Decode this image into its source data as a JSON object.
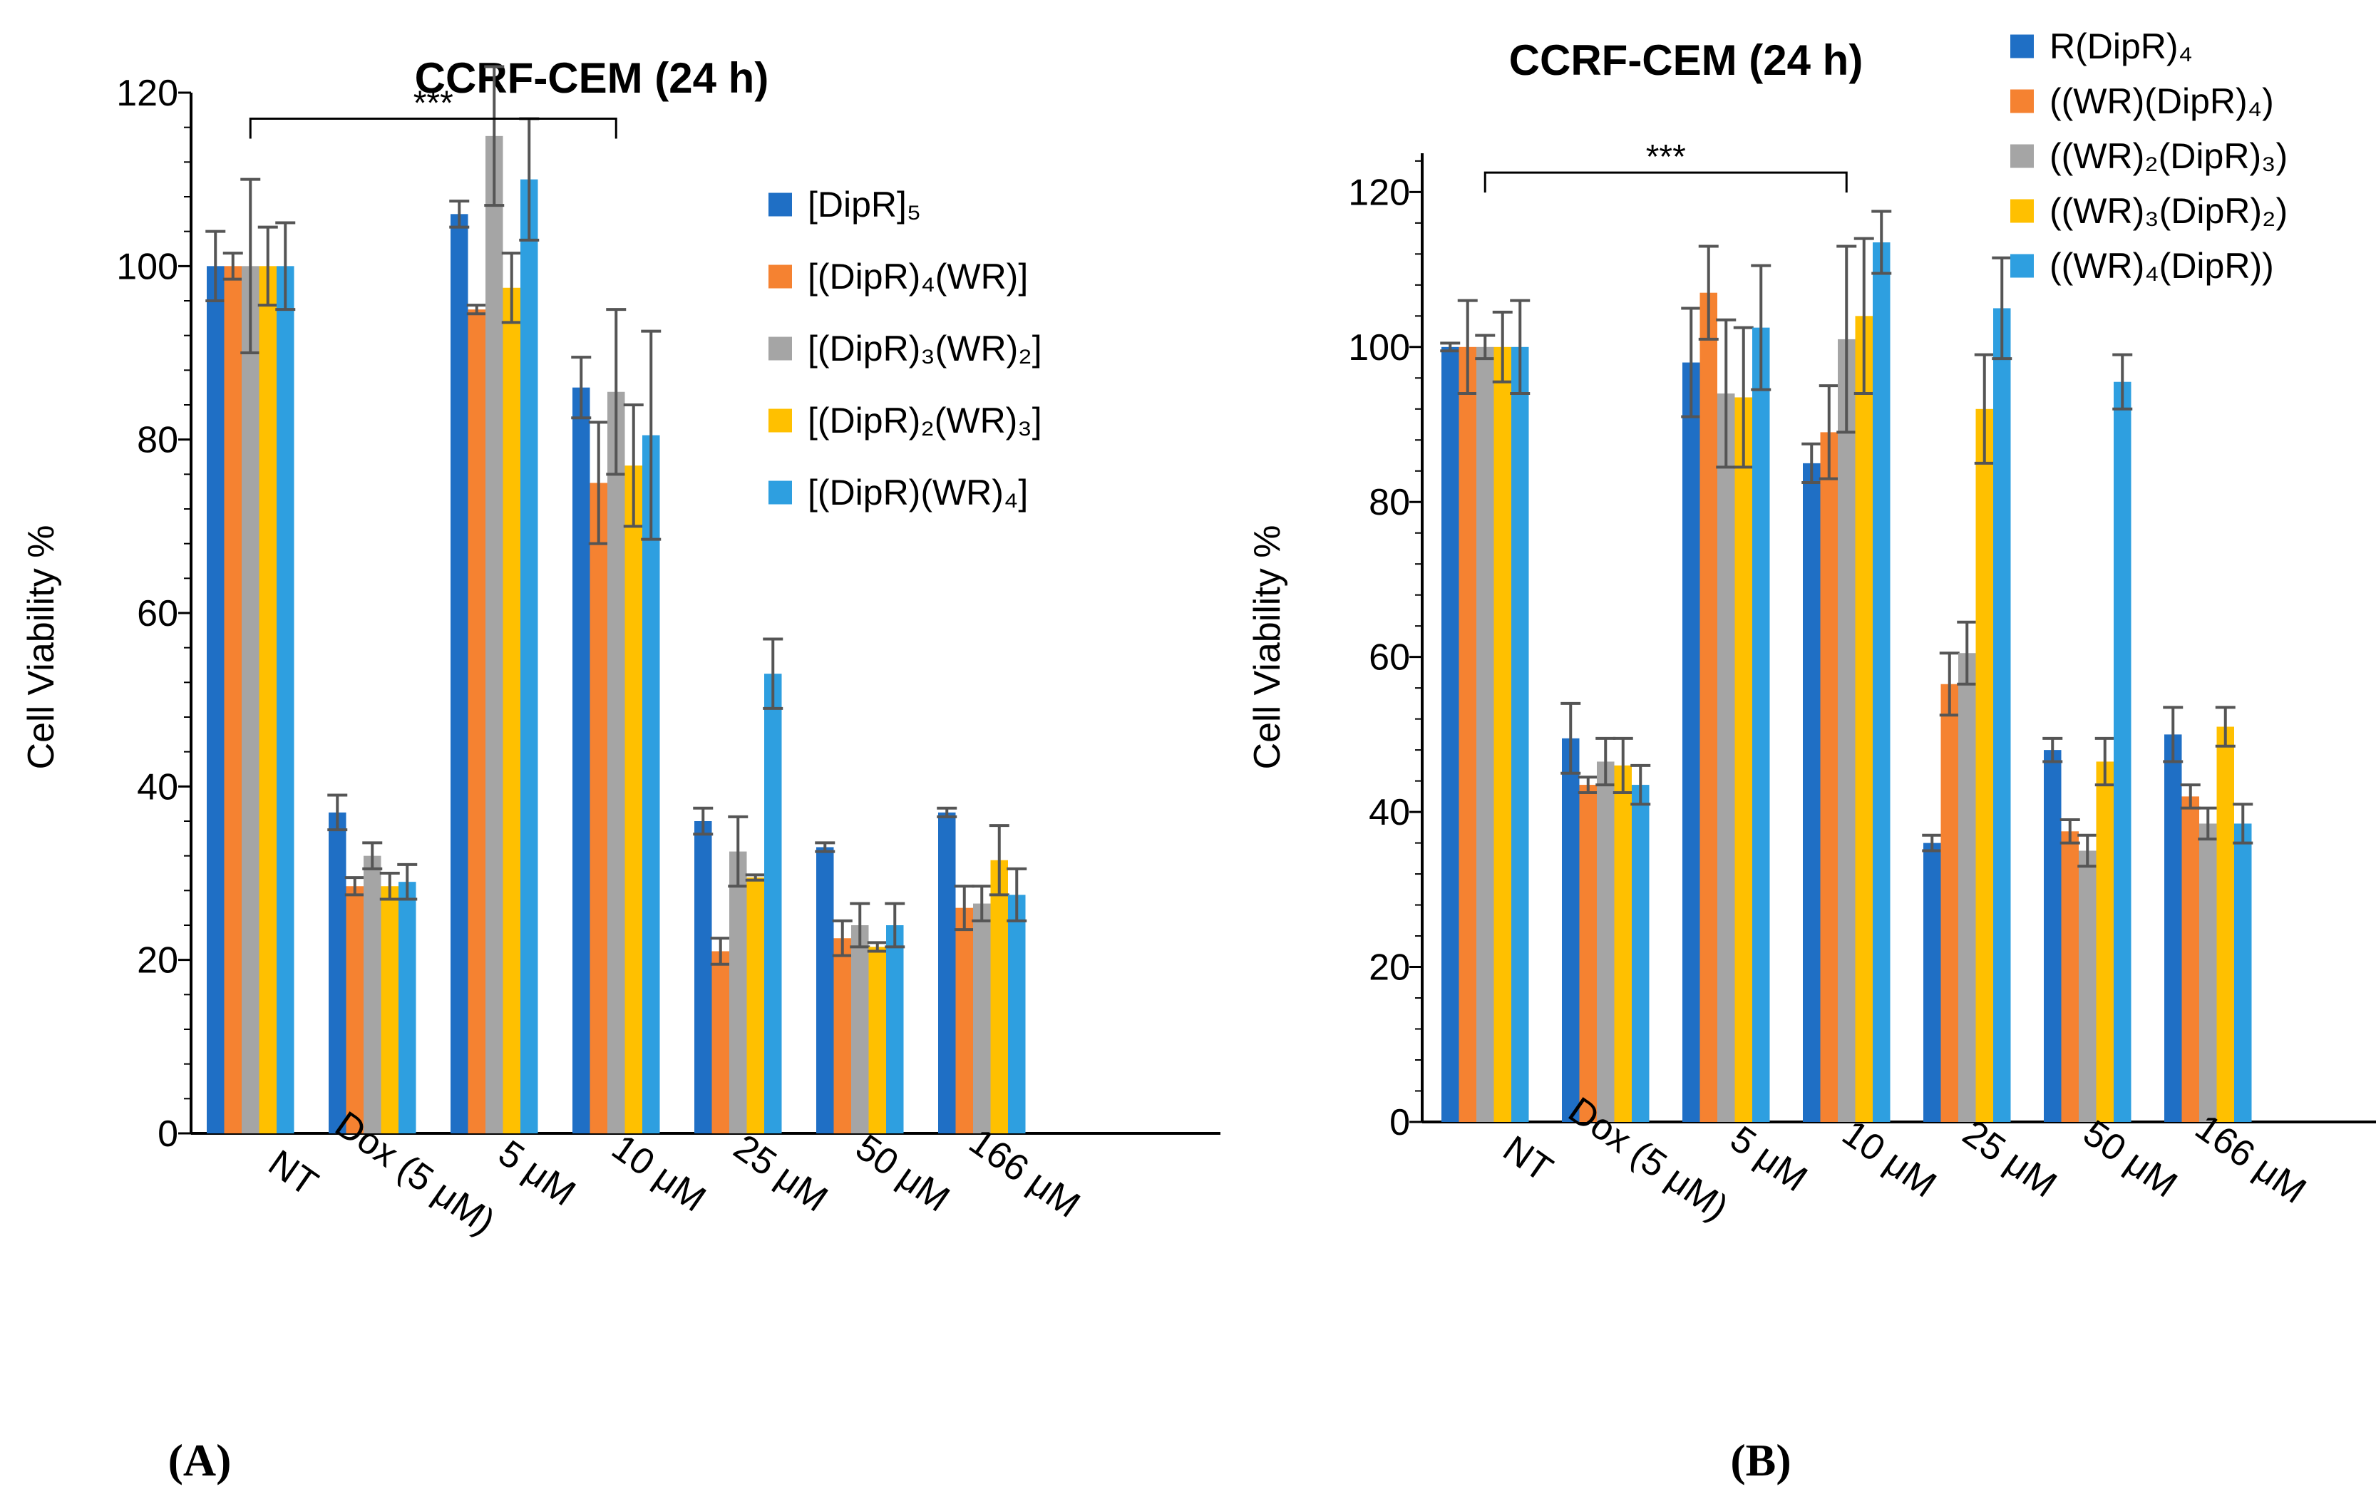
{
  "chart_data": [
    {
      "panel_label": "(A)",
      "type": "bar",
      "title": "CCRF-CEM (24 h)",
      "ylabel": "Cell Viability %",
      "xlabel": "",
      "ylim": [
        0,
        120
      ],
      "yticks": [
        0,
        20,
        40,
        60,
        80,
        100,
        120
      ],
      "categories": [
        "NT",
        "Dox (5 μM)",
        "5 μM",
        "10 μM",
        "25 μM",
        "50 μM",
        "166 μM"
      ],
      "significance": {
        "label": "***",
        "from": "NT",
        "to": "10 μM",
        "at": 117
      },
      "legend_position": "right",
      "series": [
        {
          "name": "[DipR]₅",
          "color": "#1F6FC5",
          "values": [
            100,
            37,
            106,
            86,
            36,
            33,
            37
          ],
          "errors": [
            4,
            2,
            1.5,
            3.5,
            1.5,
            0.5,
            0.5
          ]
        },
        {
          "name": "[(DipR)₄(WR)]",
          "color": "#F58231",
          "values": [
            100,
            28.5,
            95,
            75,
            21,
            22.5,
            26
          ],
          "errors": [
            1.5,
            1,
            0.5,
            7,
            1.5,
            2,
            2.5
          ]
        },
        {
          "name": "[(DipR)₃(WR)₂]",
          "color": "#A5A5A5",
          "values": [
            100,
            32,
            115,
            85.5,
            32.5,
            24,
            26.5
          ],
          "errors": [
            10,
            1.5,
            8,
            9.5,
            4,
            2.5,
            2
          ]
        },
        {
          "name": "[(DipR)₂(WR)₃]",
          "color": "#FFC000",
          "values": [
            100,
            28.5,
            97.5,
            77,
            29.5,
            21.5,
            31.5
          ],
          "errors": [
            4.5,
            1.5,
            4,
            7,
            0.3,
            0.5,
            4
          ]
        },
        {
          "name": "[(DipR)(WR)₄]",
          "color": "#2E9FE0",
          "values": [
            100,
            29,
            110,
            80.5,
            53,
            24,
            27.5
          ],
          "errors": [
            5,
            2,
            7,
            12,
            4,
            2.5,
            3
          ]
        }
      ]
    },
    {
      "panel_label": "(B)",
      "type": "bar",
      "title": "CCRF-CEM (24 h)",
      "ylabel": "Cell Viability %",
      "xlabel": "",
      "ylim": [
        0,
        125
      ],
      "yticks": [
        0,
        20,
        40,
        60,
        80,
        100,
        120
      ],
      "categories": [
        "NT",
        "Dox (5 μM)",
        "5 μM",
        "10 μM",
        "25 μM",
        "50 μM",
        "166 μM"
      ],
      "significance": {
        "label": "***",
        "from": "NT",
        "to": "10 μM",
        "at": 122.5
      },
      "legend_position": "top-right",
      "series": [
        {
          "name": "R(DipR)₄",
          "color": "#1F6FC5",
          "values": [
            100,
            49.5,
            98,
            85,
            36,
            48,
            50
          ],
          "errors": [
            0.5,
            4.5,
            7,
            2.5,
            1,
            1.5,
            3.5
          ]
        },
        {
          "name": "((WR)(DipR)₄)",
          "color": "#F58231",
          "values": [
            100,
            43.5,
            107,
            89,
            56.5,
            37.5,
            42
          ],
          "errors": [
            6,
            1,
            6,
            6,
            4,
            1.5,
            1.5
          ]
        },
        {
          "name": "((WR)₂(DipR)₃)",
          "color": "#A5A5A5",
          "values": [
            100,
            46.5,
            94,
            101,
            60.5,
            35,
            38.5
          ],
          "errors": [
            1.5,
            3,
            9.5,
            12,
            4,
            2,
            2
          ]
        },
        {
          "name": "((WR)₃(DipR)₂)",
          "color": "#FFC000",
          "values": [
            100,
            46,
            93.5,
            104,
            92,
            46.5,
            51
          ],
          "errors": [
            4.5,
            3.5,
            9,
            10,
            7,
            3,
            2.5
          ]
        },
        {
          "name": "((WR)₄(DipR))",
          "color": "#2E9FE0",
          "values": [
            100,
            43.5,
            102.5,
            113.5,
            105,
            95.5,
            38.5
          ],
          "errors": [
            6,
            2.5,
            8,
            4,
            6.5,
            3.5,
            2.5
          ]
        }
      ]
    }
  ]
}
